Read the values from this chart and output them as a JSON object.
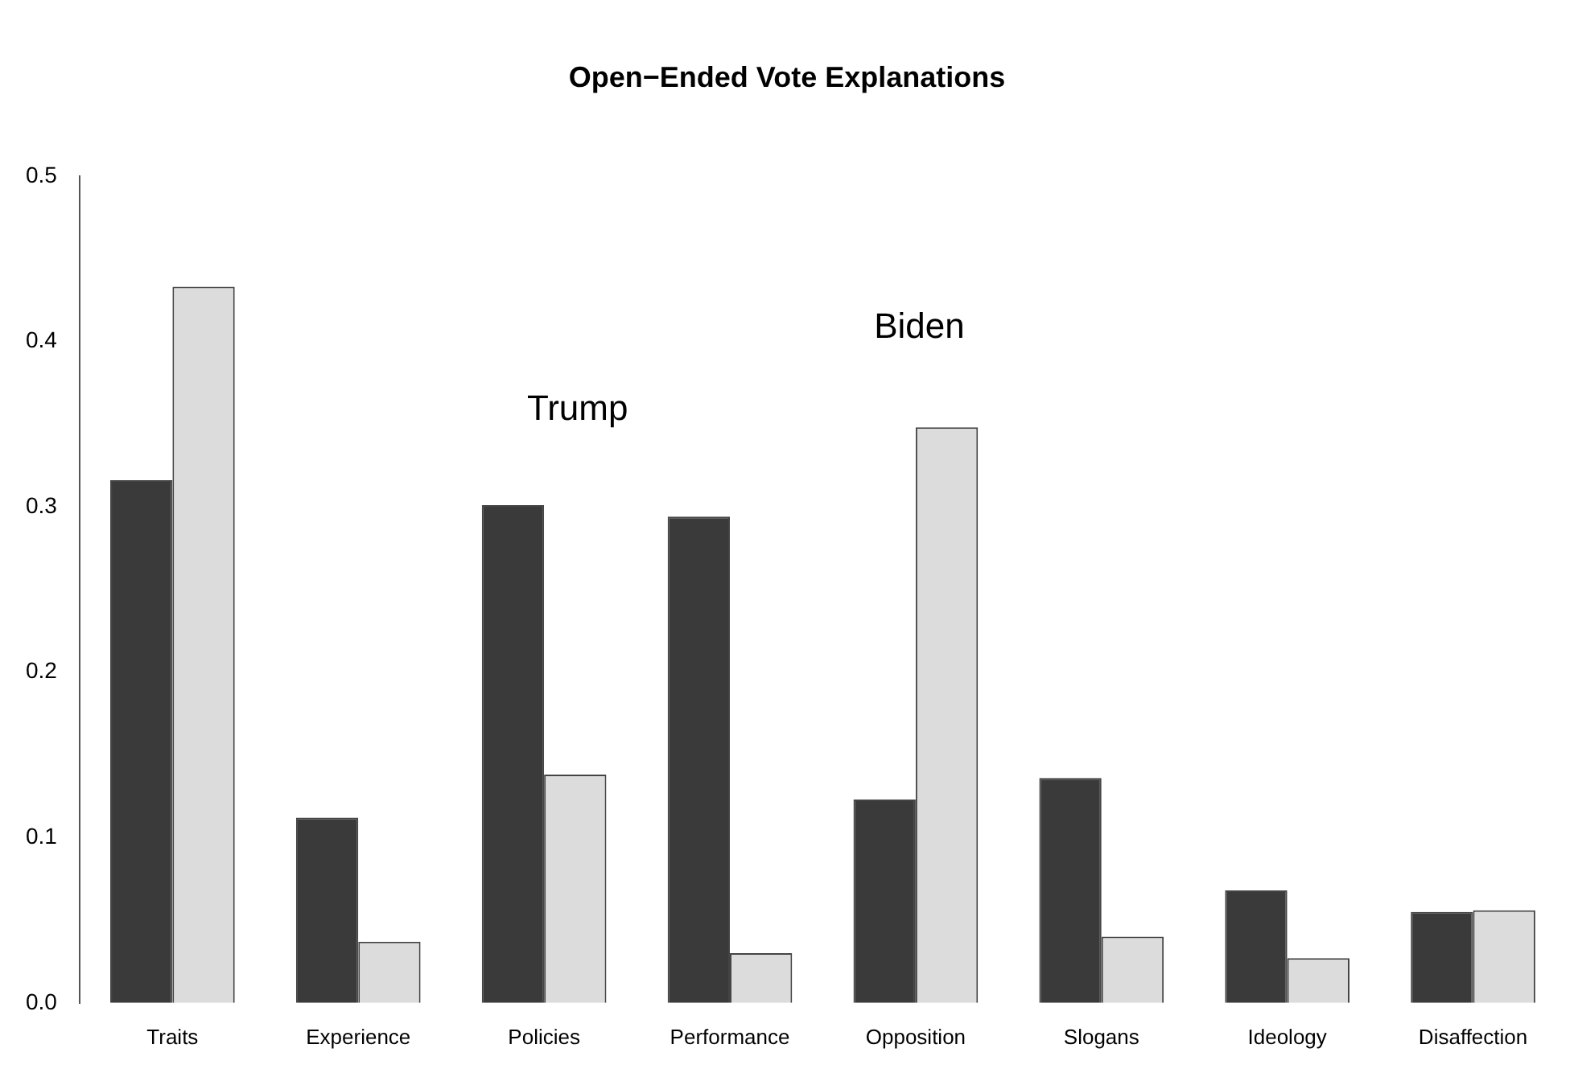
{
  "chart_data": {
    "type": "bar",
    "title": "Open−Ended Vote Explanations",
    "categories": [
      "Traits",
      "Experience",
      "Policies",
      "Performance",
      "Opposition",
      "Slogans",
      "Ideology",
      "Disaffection"
    ],
    "series": [
      {
        "color": "#3a3a3a",
        "values": [
          0.316,
          0.112,
          0.301,
          0.294,
          0.123,
          0.136,
          0.068,
          0.055
        ]
      },
      {
        "color": "#dcdcdc",
        "values": [
          0.433,
          0.037,
          0.138,
          0.03,
          0.348,
          0.04,
          0.027,
          0.056
        ]
      }
    ],
    "ylim": [
      0,
      0.5
    ],
    "yticks": [
      {
        "value": 0,
        "label": "0.0"
      },
      {
        "value": 0.1,
        "label": "0.1"
      },
      {
        "value": 0.2,
        "label": "0.2"
      },
      {
        "value": 0.3,
        "label": "0.3"
      },
      {
        "value": 0.4,
        "label": "0.4"
      },
      {
        "value": 0.5,
        "label": "0.5"
      }
    ],
    "grid": false,
    "legend": false,
    "annotations": [
      "Trump",
      "Biden"
    ]
  }
}
